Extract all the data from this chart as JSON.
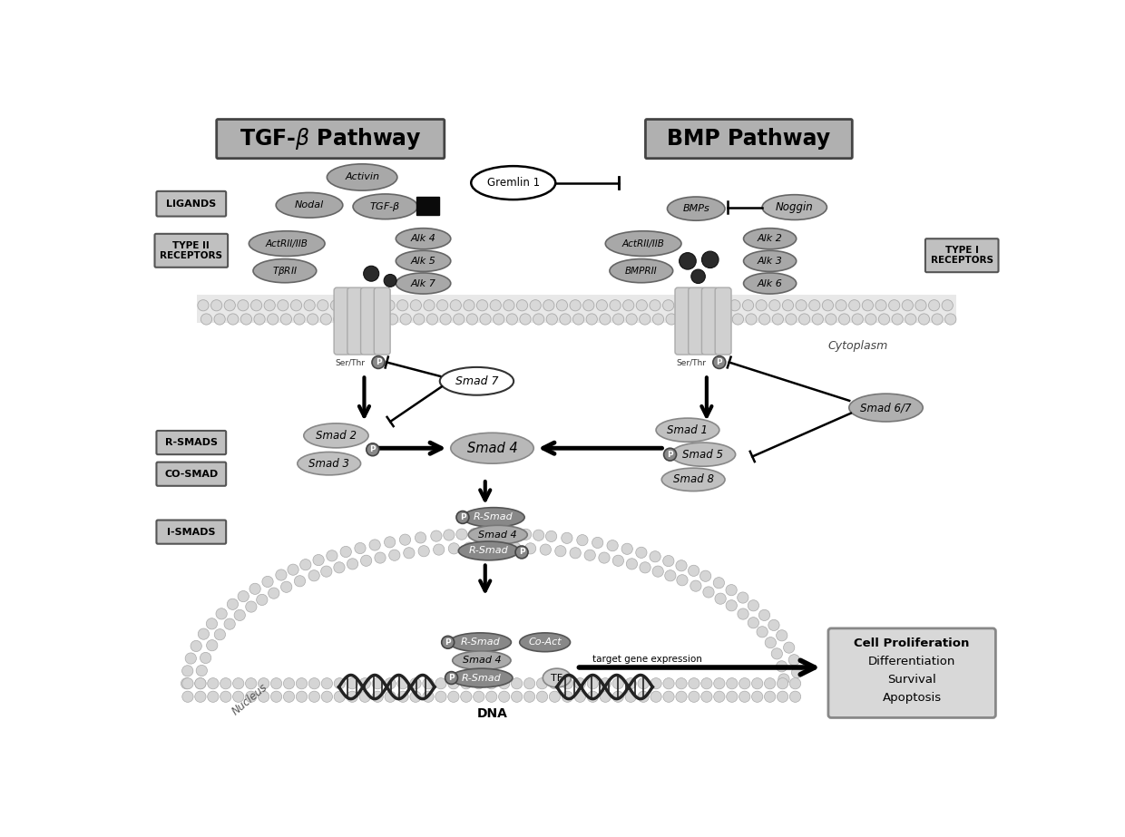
{
  "bg_color": "#ffffff",
  "fig_width": 12.4,
  "fig_height": 9.23,
  "tgf_title": "TGF-β Pathway",
  "bmp_title": "BMP Pathway",
  "ligands_label": "LIGANDS",
  "type2_label": "TYPE II\nRECEPTORS",
  "type1_label": "TYPE I\nRECEPTORS",
  "rsmads_label": "R-SMADS",
  "cosmad_label": "CO-SMAD",
  "ismads_label": "I-SMADS",
  "cytoplasm_label": "Cytoplasm",
  "nucleus_label": "Nucleus",
  "dna_label": "DNA",
  "target_gene_label": "target gene expression",
  "cell_effects": [
    "Cell Proliferation",
    "Differentiation",
    "Survival",
    "Apoptosis"
  ],
  "gray_box": "#aaaaaa",
  "gray_ellipse": "#999999",
  "gray_light": "#cccccc",
  "gray_dark": "#666666",
  "gray_darker": "#444444",
  "bead_color": "#cccccc",
  "bead_edge": "#999999",
  "dark_circle": "#333333",
  "receptor_color": "#cccccc"
}
